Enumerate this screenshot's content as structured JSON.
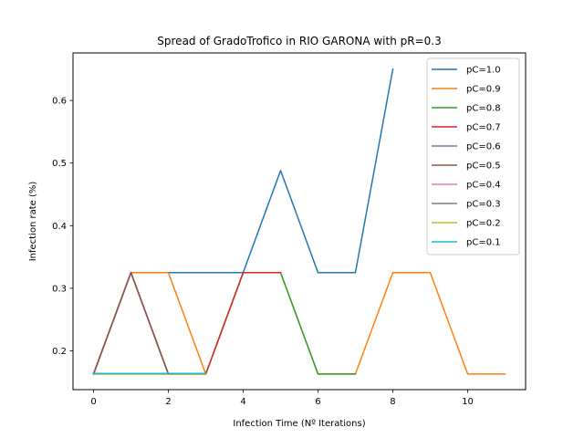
{
  "chart_data": {
    "type": "line",
    "title": "Spread of GradoTrofico in RIO GARONA with pR=0.3",
    "xlabel": "Infection Time (Nº Iterations)",
    "ylabel": "Infection rate (%)",
    "xlim": [
      -0.55,
      11.55
    ],
    "ylim": [
      0.138,
      0.676
    ],
    "xticks": [
      0,
      2,
      4,
      6,
      8,
      10
    ],
    "yticks": [
      0.2,
      0.3,
      0.4,
      0.5,
      0.6
    ],
    "grid": false,
    "legend_position": "top-right",
    "series": [
      {
        "name": "pC=1.0",
        "color": "#1f77b4",
        "x": [
          0,
          1,
          2,
          3,
          4,
          5,
          6,
          7,
          8
        ],
        "y": [
          0.163,
          0.325,
          0.325,
          0.325,
          0.325,
          0.488,
          0.325,
          0.325,
          0.65
        ]
      },
      {
        "name": "pC=0.9",
        "color": "#ff7f0e",
        "x": [
          0,
          1,
          2,
          3,
          4,
          5,
          6,
          7,
          8,
          9,
          10,
          11
        ],
        "y": [
          0.163,
          0.325,
          0.325,
          0.163,
          0.325,
          0.325,
          0.163,
          0.163,
          0.325,
          0.325,
          0.163,
          0.163
        ]
      },
      {
        "name": "pC=0.8",
        "color": "#2ca02c",
        "x": [
          0,
          1,
          2,
          3,
          4,
          5,
          6,
          7
        ],
        "y": [
          0.163,
          0.325,
          0.163,
          0.163,
          0.325,
          0.325,
          0.163,
          0.163
        ]
      },
      {
        "name": "pC=0.7",
        "color": "#d62728",
        "x": [
          0,
          1,
          2,
          3,
          4,
          5
        ],
        "y": [
          0.163,
          0.325,
          0.163,
          0.163,
          0.325,
          0.325
        ]
      },
      {
        "name": "pC=0.6",
        "color": "#9467bd",
        "x": [
          0,
          1,
          2
        ],
        "y": [
          0.163,
          0.325,
          0.163
        ]
      },
      {
        "name": "pC=0.5",
        "color": "#8c564b",
        "x": [
          0,
          1,
          2
        ],
        "y": [
          0.163,
          0.325,
          0.163
        ]
      },
      {
        "name": "pC=0.4",
        "color": "#e377c2",
        "x": [
          0,
          1,
          2,
          3
        ],
        "y": [
          0.163,
          0.163,
          0.163,
          0.163
        ]
      },
      {
        "name": "pC=0.3",
        "color": "#7f7f7f",
        "x": [
          0,
          1,
          2,
          3
        ],
        "y": [
          0.163,
          0.163,
          0.163,
          0.163
        ]
      },
      {
        "name": "pC=0.2",
        "color": "#bcbd22",
        "x": [
          0,
          1,
          2,
          3
        ],
        "y": [
          0.163,
          0.163,
          0.163,
          0.163
        ]
      },
      {
        "name": "pC=0.1",
        "color": "#17becf",
        "x": [
          0,
          1,
          2,
          3
        ],
        "y": [
          0.164,
          0.164,
          0.164,
          0.164
        ]
      }
    ]
  }
}
